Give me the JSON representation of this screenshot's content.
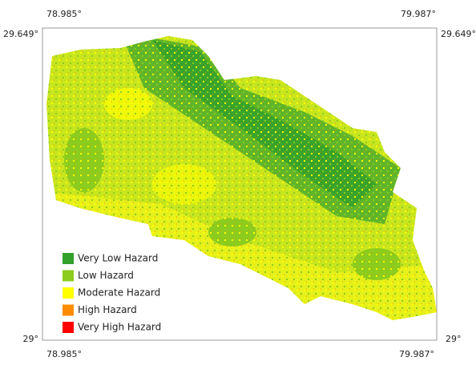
{
  "map": {
    "coordinates": {
      "top_left_lon": "78.985°",
      "top_right_lon": "79.987°",
      "left_top_lat": "29.649°",
      "right_top_lat": "29.649°",
      "left_bottom_lat": "29°",
      "right_bottom_lat": "29°",
      "bottom_left_lon": "78.985°",
      "bottom_right_lon": "79.987°"
    },
    "legend": [
      {
        "label": "Very Low Hazard",
        "color": "#33a02c"
      },
      {
        "label": "Low Hazard",
        "color": "#8ccc1e"
      },
      {
        "label": "Moderate Hazard",
        "color": "#ffff00"
      },
      {
        "label": "High Hazard",
        "color": "#ff8c00"
      },
      {
        "label": "Very High Hazard",
        "color": "#ff0000"
      }
    ]
  }
}
